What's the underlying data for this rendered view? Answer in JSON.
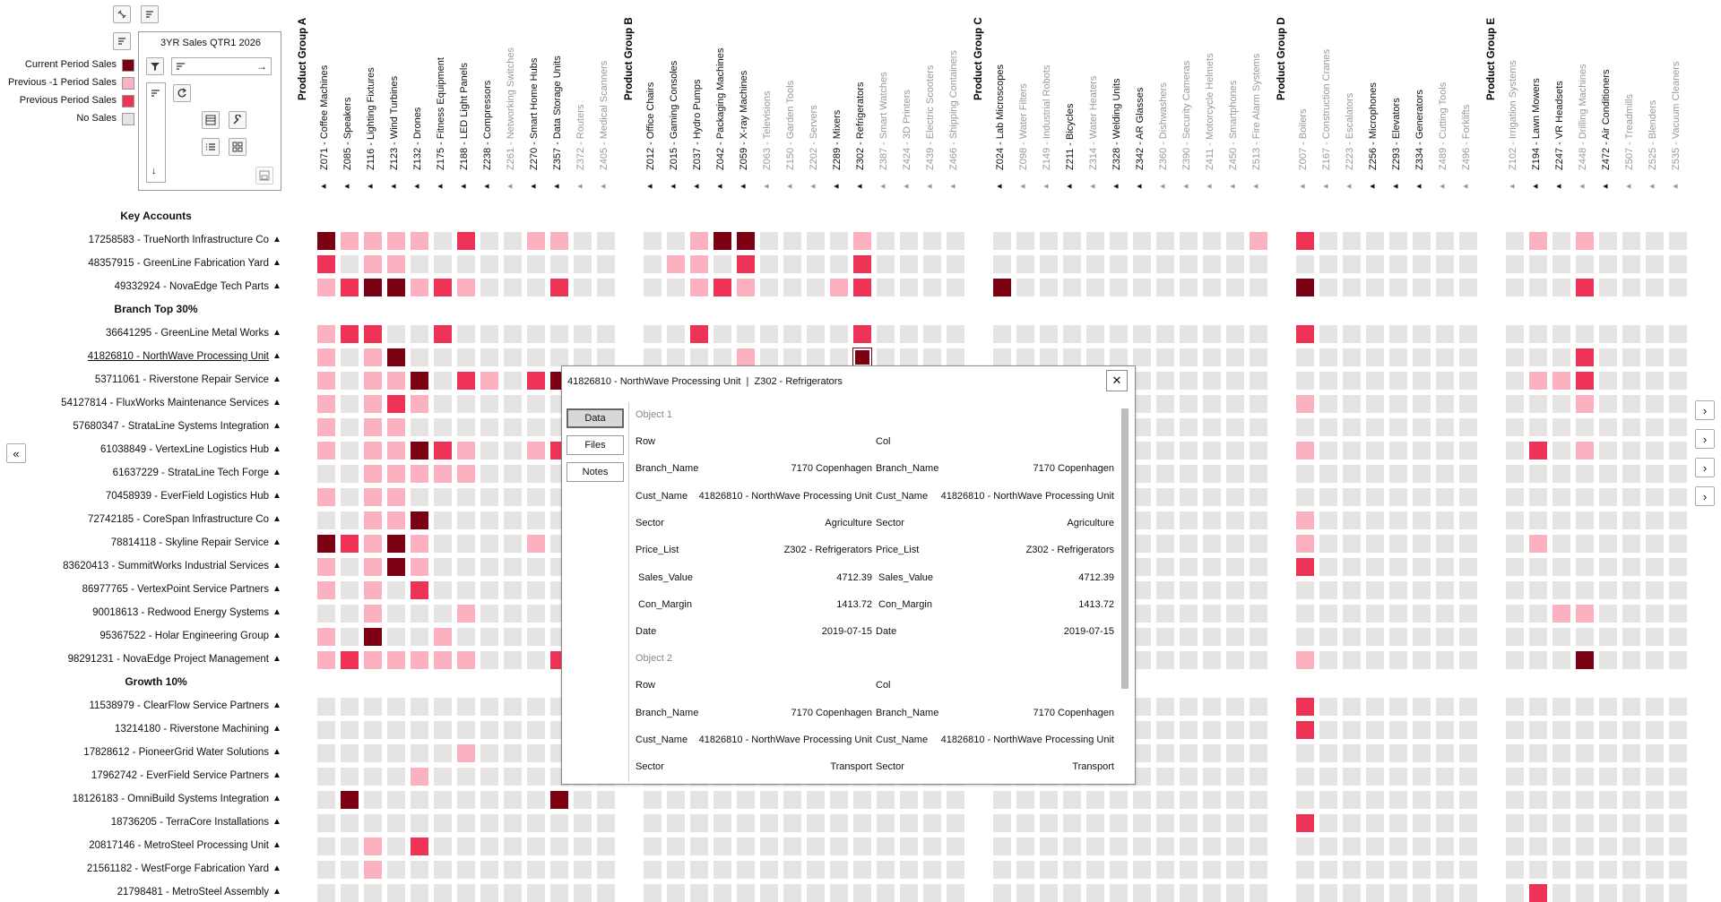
{
  "colors": {
    "current": "#7a0012",
    "previous1": "#fbb1c0",
    "previous": "#ee3356",
    "none": "#e6e3e3"
  },
  "toolbar": {
    "icons": [
      "unlink-icon",
      "align-icon",
      "align-icon"
    ],
    "panel_title": "3YR Sales QTR1 2026",
    "arrow": "→"
  },
  "legend": [
    {
      "label": "Current Period Sales",
      "color": "current"
    },
    {
      "label": "Previous -1 Period Sales",
      "color": "previous1"
    },
    {
      "label": "Previous Period Sales",
      "color": "previous"
    },
    {
      "label": "No Sales",
      "color": "none"
    }
  ],
  "groups": [
    {
      "label": "Product Group A",
      "products": [
        {
          "label": "Z071 - Coffee Machines",
          "bold": true
        },
        {
          "label": "Z085 - Speakers",
          "bold": true
        },
        {
          "label": "Z116 - Lighting Fixtures",
          "bold": true
        },
        {
          "label": "Z123 - Wind Turbines",
          "bold": true
        },
        {
          "label": "Z132 - Drones",
          "bold": true
        },
        {
          "label": "Z175 - Fitness Equipment",
          "bold": true
        },
        {
          "label": "Z188 - LED Light Panels",
          "bold": true
        },
        {
          "label": "Z238 - Compressors",
          "bold": true
        },
        {
          "label": "Z261 - Networking Switches",
          "bold": false
        },
        {
          "label": "Z270 - Smart Home Hubs",
          "bold": true
        },
        {
          "label": "Z357 - Data Storage Units",
          "bold": true
        },
        {
          "label": "Z372 - Routers",
          "bold": false
        },
        {
          "label": "Z405 - Medical Scanners",
          "bold": false
        }
      ]
    },
    {
      "label": "Product Group B",
      "products": [
        {
          "label": "Z012 - Office Chairs",
          "bold": true
        },
        {
          "label": "Z015 - Gaming Consoles",
          "bold": true
        },
        {
          "label": "Z037 - Hydro Pumps",
          "bold": true
        },
        {
          "label": "Z042 - Packaging Machines",
          "bold": true
        },
        {
          "label": "Z059 - X-ray Machines",
          "bold": true
        },
        {
          "label": "Z063 - Televisions",
          "bold": false
        },
        {
          "label": "Z150 - Garden Tools",
          "bold": false
        },
        {
          "label": "Z202 - Servers",
          "bold": false
        },
        {
          "label": "Z289 - Mixers",
          "bold": true
        },
        {
          "label": "Z302 - Refrigerators",
          "bold": true
        },
        {
          "label": "Z387 - Smart Watches",
          "bold": false
        },
        {
          "label": "Z424 - 3D Printers",
          "bold": false
        },
        {
          "label": "Z439 - Electric Scooters",
          "bold": false
        },
        {
          "label": "Z466 - Shipping Containers",
          "bold": false
        }
      ]
    },
    {
      "label": "Product Group C",
      "products": [
        {
          "label": "Z024 - Lab Microscopes",
          "bold": true
        },
        {
          "label": "Z098 - Water Filters",
          "bold": false
        },
        {
          "label": "Z149 - Industrial Robots",
          "bold": false
        },
        {
          "label": "Z211 - Bicycles",
          "bold": true
        },
        {
          "label": "Z314 - Water Heaters",
          "bold": false
        },
        {
          "label": "Z328 - Welding Units",
          "bold": true
        },
        {
          "label": "Z342 - AR Glasses",
          "bold": true
        },
        {
          "label": "Z360 - Dishwashers",
          "bold": false
        },
        {
          "label": "Z390 - Security Cameras",
          "bold": false
        },
        {
          "label": "Z411 - Motorcycle Helmets",
          "bold": false
        },
        {
          "label": "Z450 - Smartphones",
          "bold": false
        },
        {
          "label": "Z513 - Fire Alarm Systems",
          "bold": false
        }
      ]
    },
    {
      "label": "Product Group D",
      "products": [
        {
          "label": "Z007 - Boilers",
          "bold": false
        },
        {
          "label": "Z167 - Construction Cranes",
          "bold": false
        },
        {
          "label": "Z223 - Escalators",
          "bold": false
        },
        {
          "label": "Z256 - Microphones",
          "bold": true
        },
        {
          "label": "Z293 - Elevators",
          "bold": true
        },
        {
          "label": "Z334 - Generators",
          "bold": true
        },
        {
          "label": "Z489 - Cutting Tools",
          "bold": false
        },
        {
          "label": "Z496 - Forklifts",
          "bold": false
        }
      ]
    },
    {
      "label": "Product Group E",
      "products": [
        {
          "label": "Z102 - Irrigation Systems",
          "bold": false
        },
        {
          "label": "Z194 - Lawn Mowers",
          "bold": true
        },
        {
          "label": "Z247 - VR Headsets",
          "bold": true
        },
        {
          "label": "Z448 - Drilling Machines",
          "bold": false
        },
        {
          "label": "Z472 - Air Conditioners",
          "bold": true
        },
        {
          "label": "Z507 - Treadmills",
          "bold": false
        },
        {
          "label": "Z525 - Blenders",
          "bold": false
        },
        {
          "label": "Z535 - Vacuum Cleaners",
          "bold": false
        }
      ]
    }
  ],
  "rows": [
    {
      "section": "Key Accounts"
    },
    {
      "label": "17258583 - TrueNorth Infrastructure Co",
      "cells": {
        "0": "c",
        "1": "p1",
        "2": "p1",
        "3": "p1",
        "4": "p1",
        "6": "p",
        "9": "p1",
        "10": "p1",
        "15": "p1",
        "16": "c",
        "17": "c",
        "22": "p1",
        "38": "p1",
        "39": "p",
        "48": "p1",
        "50": "p1",
        "60": "p1"
      }
    },
    {
      "label": "48357915 - GreenLine Fabrication Yard",
      "cells": {
        "0": "p",
        "2": "p1",
        "3": "p1",
        "14": "p1",
        "15": "p1",
        "17": "p",
        "22": "p",
        "60": "p1"
      }
    },
    {
      "label": "49332924 - NovaEdge Tech Parts",
      "cells": {
        "0": "p1",
        "1": "p",
        "2": "c",
        "3": "c",
        "4": "p1",
        "5": "p",
        "6": "p1",
        "10": "p",
        "15": "p1",
        "16": "p",
        "17": "p1",
        "21": "p1",
        "22": "p",
        "27": "c",
        "39": "c",
        "50": "p"
      }
    },
    {
      "section": "Branch Top 30%"
    },
    {
      "label": "36641295 - GreenLine Metal Works",
      "cells": {
        "0": "p1",
        "1": "p",
        "2": "p",
        "5": "p",
        "15": "p",
        "22": "p",
        "39": "p"
      }
    },
    {
      "label": "41826810 - NorthWave Processing Unit",
      "underline": true,
      "cells": {
        "0": "p1",
        "2": "p1",
        "3": "c",
        "17": "p1",
        "22": "cs",
        "50": "p"
      }
    },
    {
      "label": "53711061 - Riverstone Repair Service",
      "cells": {
        "0": "p1",
        "2": "p1",
        "3": "p1",
        "4": "c",
        "6": "p",
        "7": "p1",
        "9": "p",
        "10": "c",
        "48": "p1",
        "49": "p1",
        "50": "p",
        "60": "c"
      }
    },
    {
      "label": "54127814 - FluxWorks Maintenance Services",
      "cells": {
        "0": "p1",
        "2": "p1",
        "3": "p",
        "4": "p1",
        "39": "p1",
        "50": "p1"
      }
    },
    {
      "label": "57680347 - StrataLine Systems Integration",
      "cells": {
        "0": "p1",
        "2": "p1",
        "3": "p1"
      }
    },
    {
      "label": "61038849 - VertexLine Logistics Hub",
      "cells": {
        "0": "p1",
        "2": "p1",
        "3": "p1",
        "4": "c",
        "5": "p",
        "6": "p1",
        "9": "p1",
        "10": "p",
        "39": "p1",
        "48": "p",
        "50": "p1",
        "60": "p"
      }
    },
    {
      "label": "61637229 - StrataLine Tech Forge",
      "cells": {
        "2": "p1",
        "3": "p1",
        "4": "p1",
        "5": "p1",
        "6": "p1",
        "62": "p"
      }
    },
    {
      "label": "70458939 - EverField Logistics Hub",
      "cells": {
        "0": "p1",
        "2": "p1",
        "3": "p1"
      }
    },
    {
      "label": "72742185 - CoreSpan Infrastructure Co",
      "cells": {
        "2": "p1",
        "3": "p1",
        "4": "c",
        "39": "p1"
      }
    },
    {
      "label": "78814118 - Skyline Repair Service",
      "cells": {
        "0": "c",
        "1": "p",
        "2": "p1",
        "3": "c",
        "4": "p1",
        "9": "p1",
        "39": "p1",
        "48": "p1",
        "60": "p"
      }
    },
    {
      "label": "83620413 - SummitWorks Industrial Services",
      "cells": {
        "0": "p1",
        "2": "p1",
        "3": "c",
        "4": "p1",
        "39": "p",
        "60": "p1"
      }
    },
    {
      "label": "86977765 - VertexPoint Service Partners",
      "cells": {
        "0": "p1",
        "2": "p1",
        "4": "p"
      }
    },
    {
      "label": "90018613 - Redwood Energy Systems",
      "cells": {
        "2": "p1",
        "6": "p1",
        "49": "p1",
        "50": "p1"
      }
    },
    {
      "label": "95367522 - Holar Engineering Group",
      "cells": {
        "0": "p1",
        "2": "c",
        "5": "p1"
      }
    },
    {
      "label": "98291231 - NovaEdge Project Management",
      "cells": {
        "0": "p1",
        "1": "p",
        "2": "p1",
        "3": "p1",
        "4": "p1",
        "5": "p1",
        "6": "p1",
        "10": "p",
        "39": "p1",
        "50": "c",
        "59": "p1",
        "60": "p1"
      }
    },
    {
      "section": "Growth 10%"
    },
    {
      "label": "11538979 - ClearFlow Service Partners",
      "cells": {
        "39": "p"
      }
    },
    {
      "label": "13214180 - Riverstone Machining",
      "cells": {
        "39": "p"
      }
    },
    {
      "label": "17828612 - PioneerGrid Water Solutions",
      "cells": {
        "6": "p1",
        "59": "p1"
      }
    },
    {
      "label": "17962742 - EverField Service Partners",
      "cells": {
        "4": "p1"
      }
    },
    {
      "label": "18126183 - OmniBuild Systems Integration",
      "cells": {
        "1": "c",
        "10": "c"
      }
    },
    {
      "label": "18736205 - TerraCore Installations",
      "cells": {
        "39": "p"
      }
    },
    {
      "label": "20817146 - MetroSteel Processing Unit",
      "cells": {
        "2": "p1",
        "4": "p"
      }
    },
    {
      "label": "21561182 - WestForge Fabrication Yard",
      "cells": {
        "2": "p1"
      }
    },
    {
      "label": "21798481 - MetroSteel Assembly",
      "cells": {
        "48": "p"
      }
    }
  ],
  "popup": {
    "title": "41826810 - NorthWave Processing Unit  |  Z302 - Refrigerators",
    "close": "✕",
    "tabs": [
      "Data",
      "Files",
      "Notes"
    ],
    "objects": [
      {
        "heading": "Object 1",
        "fields": [
          [
            "Row",
            "",
            "Col",
            ""
          ],
          [
            "Branch_Name",
            "7170 Copenhagen",
            "Branch_Name",
            "7170 Copenhagen"
          ],
          [
            "Cust_Name",
            "41826810 - NorthWave Processing Unit",
            "Cust_Name",
            "41826810 - NorthWave Processing Unit"
          ],
          [
            "Sector",
            "Agriculture",
            "Sector",
            "Agriculture"
          ],
          [
            "Price_List",
            "Z302 - Refrigerators",
            "Price_List",
            "Z302 - Refrigerators"
          ],
          [
            " Sales_Value",
            "4712.39",
            " Sales_Value",
            "4712.39"
          ],
          [
            " Con_Margin",
            "1413.72",
            " Con_Margin",
            "1413.72"
          ],
          [
            "Date",
            "2019-07-15",
            "Date",
            "2019-07-15"
          ]
        ]
      },
      {
        "heading": "Object 2",
        "fields": [
          [
            "Row",
            "",
            "Col",
            ""
          ],
          [
            "Branch_Name",
            "7170 Copenhagen",
            "Branch_Name",
            "7170 Copenhagen"
          ],
          [
            "Cust_Name",
            "41826810 - NorthWave Processing Unit",
            "Cust_Name",
            "41826810 - NorthWave Processing Unit"
          ],
          [
            "Sector",
            "Transport",
            "Sector",
            "Transport"
          ]
        ]
      }
    ]
  },
  "nav": {
    "collapse": "«",
    "right": "›"
  }
}
